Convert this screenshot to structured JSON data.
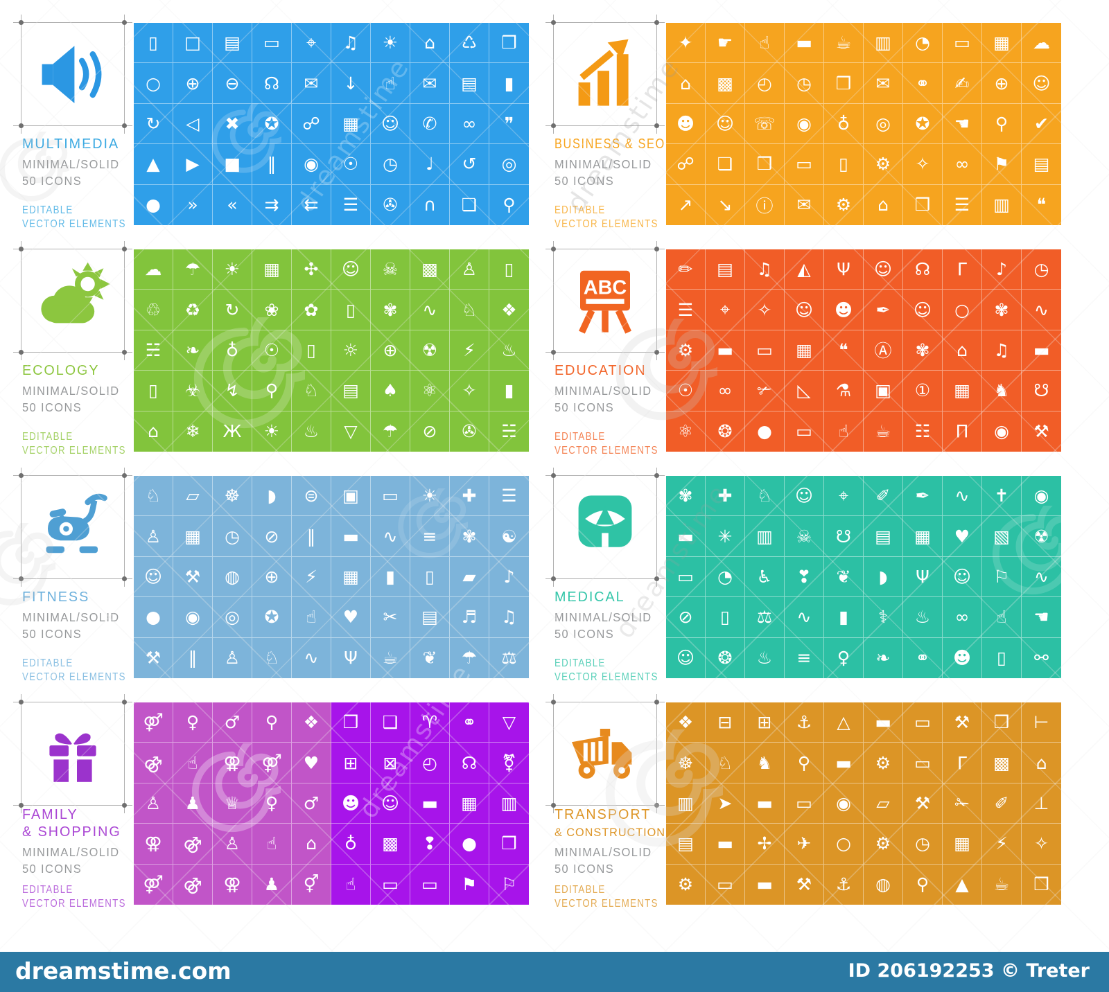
{
  "watermark": {
    "footer_left": "dreamstime.com",
    "footer_right": "ID 206192253 © Treter",
    "bar_color": "#2b79a3",
    "ghost_text": "dreamstime"
  },
  "sets": [
    {
      "title_lines": [
        "MULTIMEDIA"
      ],
      "subtitle_lines": [
        "MINIMAL/SOLID",
        "50 ICONS"
      ],
      "footnote_lines": [
        "EDITABLE",
        "VECTOR ELEMENTS"
      ],
      "card_icon": "speaker",
      "title_color": "#3aa9e2",
      "icon_color": "#2b97e3",
      "grid_colors": [
        "#2f9fe9"
      ],
      "icons": [
        "▯",
        "□",
        "▤",
        "▭",
        "⌖",
        "♫",
        "☀",
        "⌂",
        "♺",
        "❒",
        "○",
        "⊕",
        "⊖",
        "☊",
        "✉",
        "↓",
        "☝",
        "✉",
        "▤",
        "▮",
        "↻",
        "◁",
        "✖",
        "✪",
        "☍",
        "▦",
        "☺",
        "✆",
        "∞",
        "❞",
        "▲",
        "▶",
        "■",
        "‖",
        "◉",
        "☉",
        "◷",
        "♩",
        "↺",
        "◎",
        "●",
        "»",
        "«",
        "⇉",
        "⇇",
        "☰",
        "✇",
        "∩",
        "❏",
        "⚲"
      ]
    },
    {
      "title_lines": [
        "BUSINESS & SEO"
      ],
      "subtitle_lines": [
        "MINIMAL/SOLID",
        "50 ICONS"
      ],
      "footnote_lines": [
        "EDITABLE",
        "VECTOR ELEMENTS"
      ],
      "card_icon": "barchart",
      "title_color": "#f7a41d",
      "icon_color": "#f49a15",
      "grid_colors": [
        "#f6a41f"
      ],
      "icons": [
        "✦",
        "☛",
        "☝",
        "▬",
        "☕",
        "▥",
        "◔",
        "▭",
        "▦",
        "☁",
        "⌂",
        "▩",
        "◴",
        "◷",
        "❒",
        "✉",
        "⚭",
        "✍",
        "⊕",
        "☺",
        "☻",
        "☺",
        "☏",
        "◉",
        "♁",
        "◎",
        "✪",
        "☚",
        "⚲",
        "✔",
        "☍",
        "❏",
        "❒",
        "▭",
        "▯",
        "⚙",
        "✧",
        "∞",
        "⚑",
        "▤",
        "↗",
        "↘",
        "ⓘ",
        "✉",
        "⚙",
        "⌂",
        "❒",
        "☰",
        "▥",
        "❝"
      ]
    },
    {
      "title_lines": [
        "ECOLOGY"
      ],
      "subtitle_lines": [
        "MINIMAL/SOLID",
        "50 ICONS"
      ],
      "footnote_lines": [
        "EDITABLE",
        "VECTOR ELEMENTS"
      ],
      "card_icon": "cloudsun",
      "title_color": "#8dc63f",
      "icon_color": "#8cc63f",
      "grid_colors": [
        "#82c43c"
      ],
      "icons": [
        "☁",
        "☂",
        "☀",
        "▦",
        "✣",
        "☺",
        "☠",
        "▩",
        "♙",
        "▯",
        "♲",
        "♻",
        "↻",
        "❀",
        "✿",
        "▯",
        "✾",
        "∿",
        "♘",
        "❖",
        "☵",
        "❧",
        "♁",
        "☉",
        "▯",
        "☼",
        "⊕",
        "☢",
        "⚡",
        "♨",
        "▯",
        "☣",
        "↯",
        "⚲",
        "♘",
        "▤",
        "♠",
        "⚛",
        "✧",
        "▮",
        "⌂",
        "❄",
        "Ж",
        "☀",
        "♨",
        "▽",
        "☂",
        "⊘",
        "✇",
        "☵"
      ]
    },
    {
      "title_lines": [
        "EDUCATION"
      ],
      "subtitle_lines": [
        "MINIMAL/SOLID",
        "50 ICONS"
      ],
      "footnote_lines": [
        "EDITABLE",
        "VECTOR ELEMENTS"
      ],
      "card_icon": "easel",
      "title_color": "#f2652a",
      "icon_color": "#f16522",
      "grid_colors": [
        "#f15d27"
      ],
      "icons": [
        "✏",
        "▤",
        "♫",
        "◭",
        "Ψ",
        "☺",
        "☊",
        "Γ",
        "♪",
        "◷",
        "☰",
        "⌖",
        "✧",
        "☺",
        "☻",
        "✒",
        "☺",
        "○",
        "✾",
        "∿",
        "⚙",
        "▬",
        "▭",
        "▦",
        "❝",
        "Ⓐ",
        "✾",
        "⌂",
        "♫",
        "▬",
        "☉",
        "∞",
        "✃",
        "◺",
        "⚗",
        "▣",
        "①",
        "▦",
        "♞",
        "☋",
        "⚛",
        "❂",
        "●",
        "▭",
        "☝",
        "☕",
        "☷",
        "Π",
        "◉",
        "⚒"
      ]
    },
    {
      "title_lines": [
        "FITNESS"
      ],
      "subtitle_lines": [
        "MINIMAL/SOLID",
        "50 ICONS"
      ],
      "footnote_lines": [
        "EDITABLE",
        "VECTOR ELEMENTS"
      ],
      "card_icon": "exercisebike",
      "title_color": "#6cb0dc",
      "icon_color": "#4f9fd3",
      "grid_colors": [
        "#7db4da"
      ],
      "icons": [
        "♘",
        "▱",
        "☸",
        "◗",
        "⊜",
        "▣",
        "▭",
        "☀",
        "✚",
        "☰",
        "♙",
        "▦",
        "◷",
        "⊘",
        "‖",
        "▬",
        "∿",
        "≡",
        "✾",
        "☯",
        "☺",
        "⚒",
        "◍",
        "⊕",
        "⚡",
        "▦",
        "▮",
        "▯",
        "▰",
        "♪",
        "●",
        "◉",
        "◎",
        "✪",
        "☝",
        "♥",
        "✂",
        "▤",
        "♬",
        "♫",
        "⚒",
        "‖",
        "♙",
        "♘",
        "∿",
        "Ψ",
        "☕",
        "❦",
        "☂",
        "⚖"
      ]
    },
    {
      "title_lines": [
        "MEDICAL"
      ],
      "subtitle_lines": [
        "MINIMAL/SOLID",
        "50 ICONS"
      ],
      "footnote_lines": [
        "EDITABLE",
        "VECTOR ELEMENTS"
      ],
      "card_icon": "scale",
      "title_color": "#31c5a8",
      "icon_color": "#2fc3a5",
      "grid_colors": [
        "#2cc0a4"
      ],
      "icons": [
        "✾",
        "✚",
        "♘",
        "☺",
        "⌖",
        "✐",
        "✒",
        "∿",
        "✝",
        "◉",
        "▬",
        "✳",
        "▥",
        "☠",
        "☋",
        "▤",
        "▦",
        "♥",
        "▧",
        "☢",
        "▭",
        "◔",
        "♿",
        "❣",
        "❦",
        "◗",
        "Ψ",
        "☺",
        "⚐",
        "∿",
        "⊘",
        "▯",
        "⚖",
        "∿",
        "▮",
        "⚕",
        "♨",
        "∞",
        "☝",
        "☚",
        "☺",
        "❂",
        "♨",
        "≡",
        "♀",
        "❧",
        "⚭",
        "☻",
        "▯",
        "⚯"
      ]
    },
    {
      "title_lines": [
        "FAMILY",
        "& SHOPPING"
      ],
      "subtitle_lines": [
        "MINIMAL/SOLID",
        "50 ICONS"
      ],
      "footnote_lines": [
        "EDITABLE",
        "VECTOR ELEMENTS"
      ],
      "card_icon": "gift",
      "title_color": "#aa46d4",
      "icon_color": "#9b33cc",
      "grid_colors": [
        "#c155c8",
        "#a714ea"
      ],
      "icons": [
        "⚤",
        "♀",
        "♂",
        "⚲",
        "❖",
        "❒",
        "❑",
        "♈",
        "⚭",
        "▽",
        "⚣",
        "☝",
        "⚢",
        "⚤",
        "♥",
        "⊞",
        "⊠",
        "◴",
        "☊",
        "⚧",
        "♙",
        "♟",
        "♕",
        "♀",
        "♂",
        "☻",
        "☺",
        "▬",
        "▦",
        "▥",
        "⚢",
        "⚣",
        "♙",
        "☝",
        "⌂",
        "♁",
        "▩",
        "❢",
        "●",
        "❒",
        "⚤",
        "⚣",
        "⚢",
        "♟",
        "⚥",
        "☝",
        "▭",
        "▭",
        "⚑",
        "⚐"
      ]
    },
    {
      "title_lines": [
        "TRANSPORT",
        "& CONSTRUCTION"
      ],
      "subtitle_lines": [
        "MINIMAL/SOLID",
        "50 ICONS"
      ],
      "footnote_lines": [
        "EDITABLE",
        "VECTOR ELEMENTS"
      ],
      "card_icon": "dumptruck",
      "title_color": "#dd9526",
      "icon_color": "#e78a1e",
      "grid_colors": [
        "#dc9526"
      ],
      "title_small_line2": true,
      "icons": [
        "❖",
        "⊟",
        "⊞",
        "⚓",
        "△",
        "▬",
        "▭",
        "⚒",
        "❒",
        "⊢",
        "☸",
        "♘",
        "♞",
        "⚲",
        "▬",
        "⚙",
        "▭",
        "Γ",
        "▩",
        "⌂",
        "▥",
        "➤",
        "▬",
        "▭",
        "◉",
        "▱",
        "⚒",
        "✁",
        "✐",
        "⊥",
        "▤",
        "▬",
        "✢",
        "✈",
        "○",
        "⚙",
        "◷",
        "▦",
        "⚡",
        "✧",
        "⚙",
        "▭",
        "▬",
        "⚒",
        "⚓",
        "◍",
        "⚲",
        "▲",
        "☕",
        "❒"
      ]
    }
  ]
}
